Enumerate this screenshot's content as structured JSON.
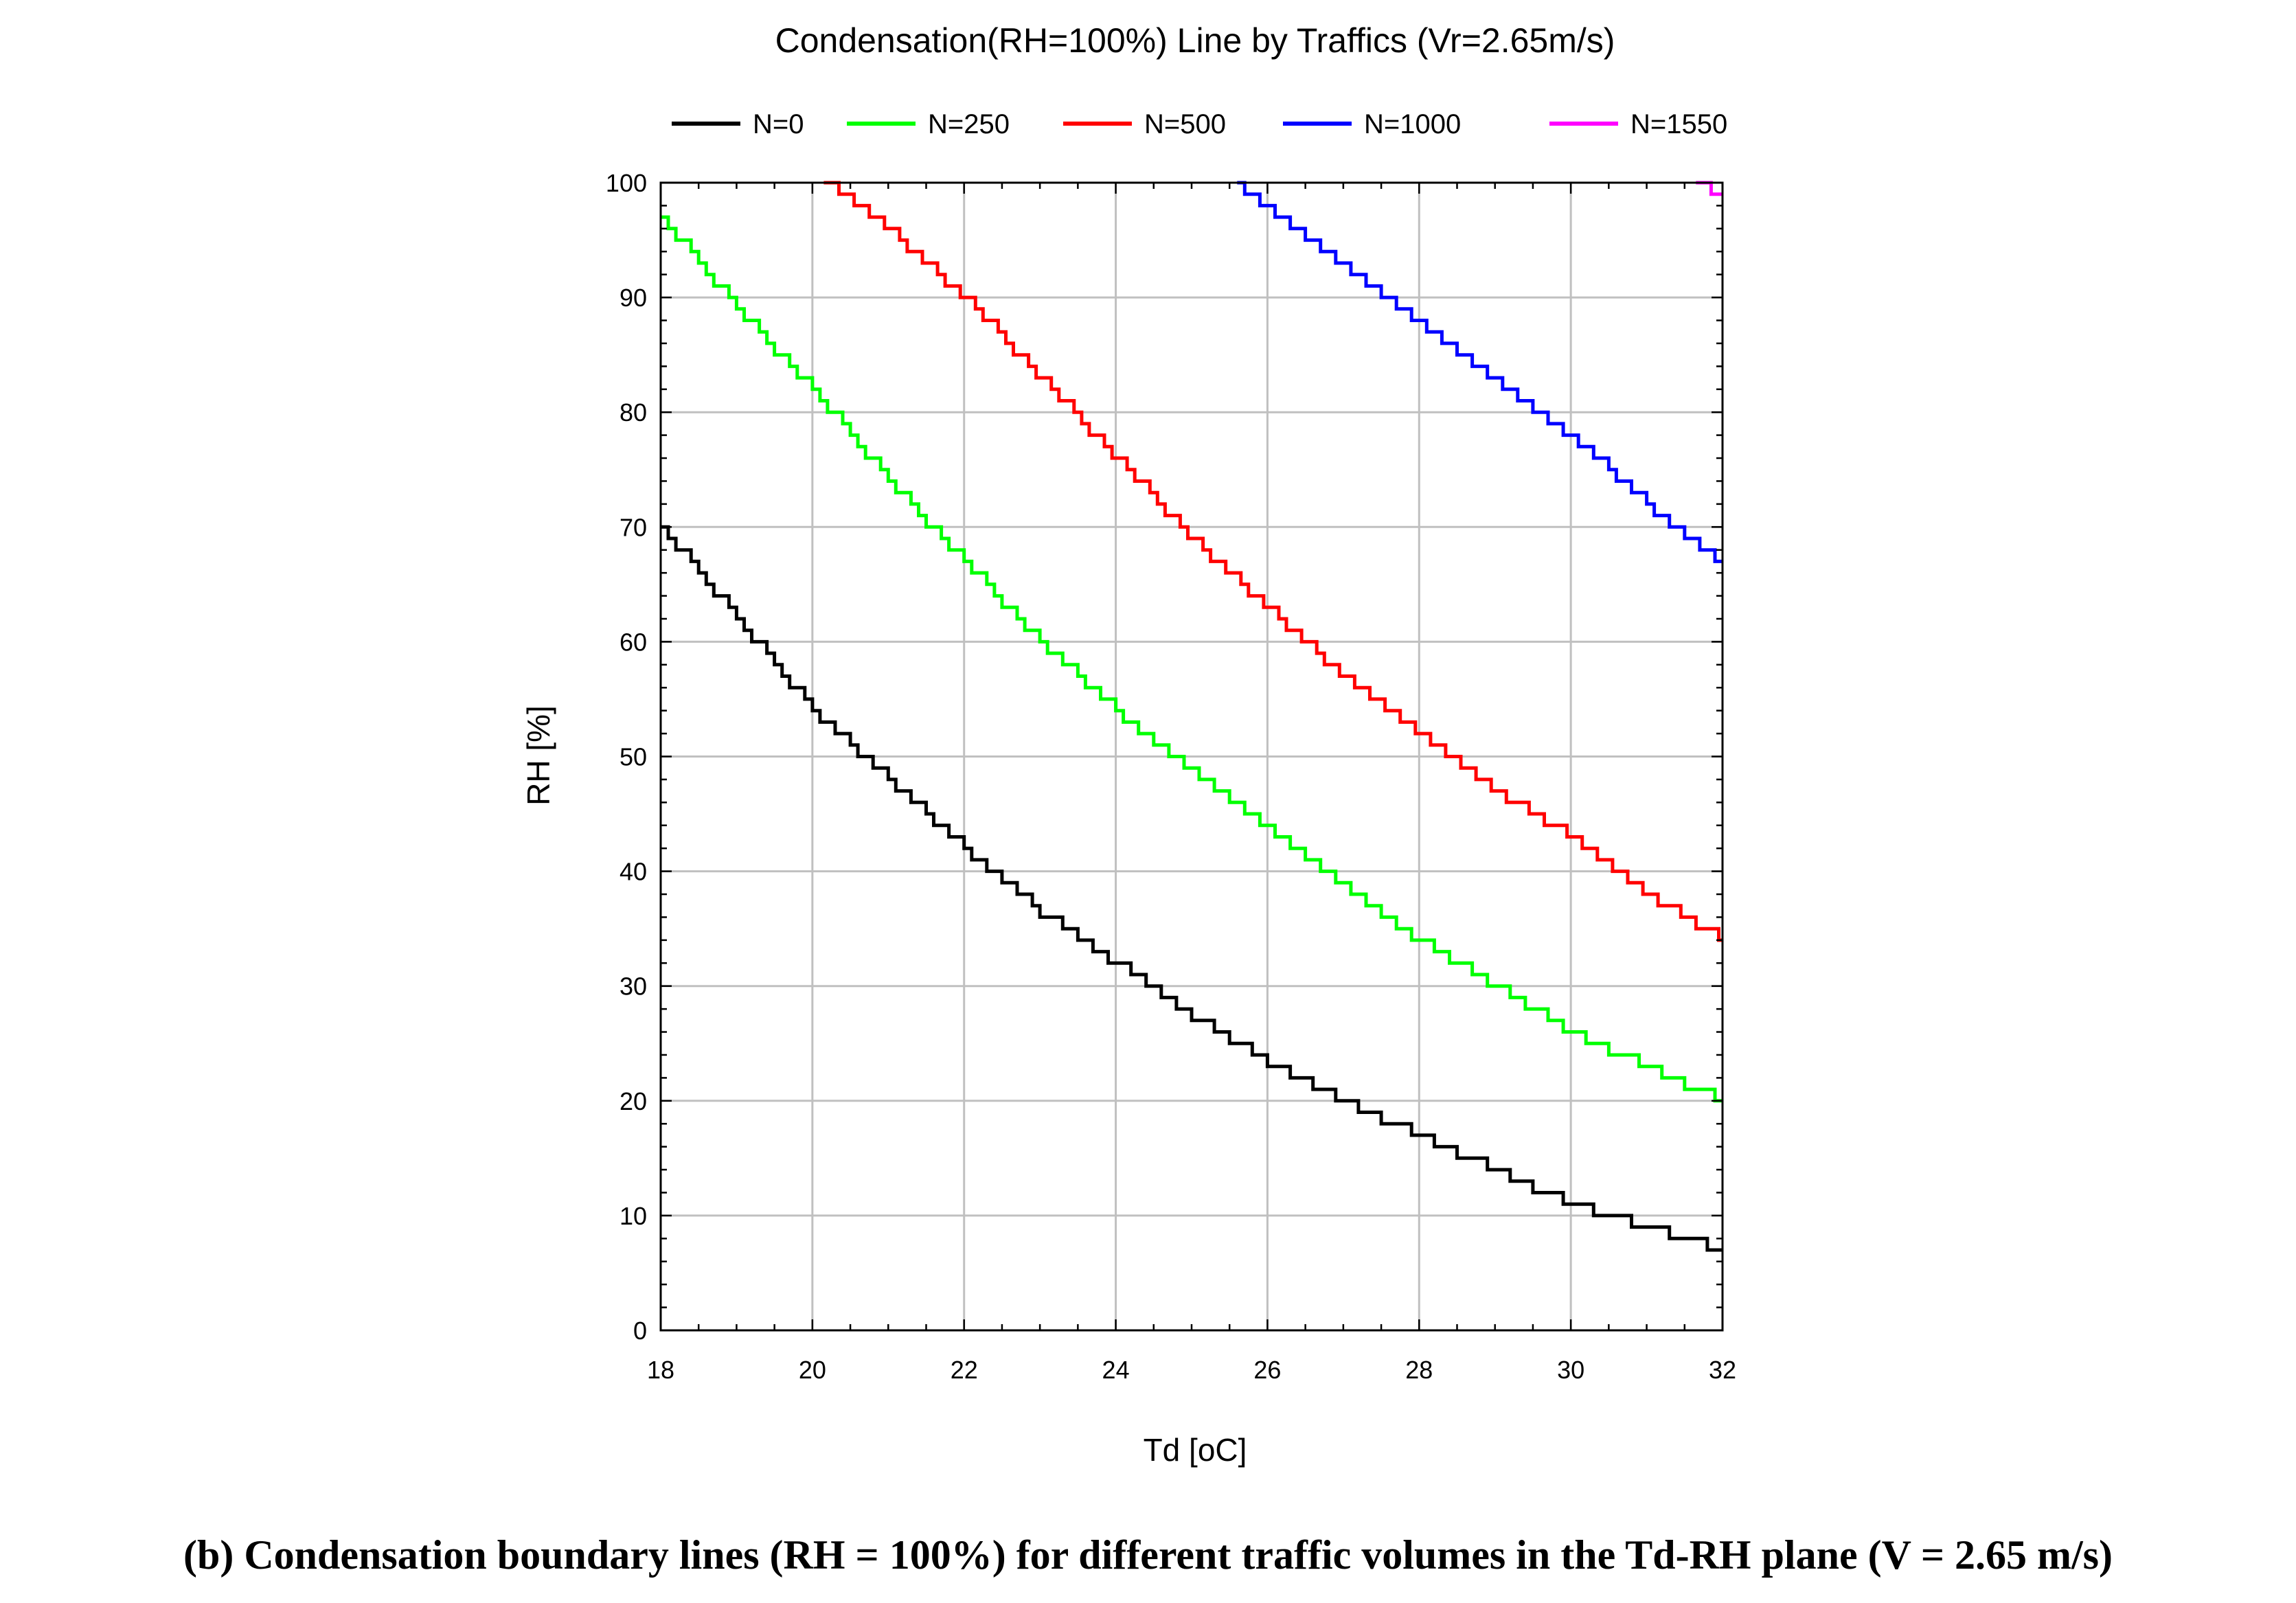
{
  "chart_data": {
    "type": "line",
    "title": "Condensation(RH=100%) Line by Traffics (Vr=2.65m/s)",
    "xlabel": "Td [oC]",
    "ylabel": "RH [%]",
    "xlim": [
      18,
      32
    ],
    "ylim": [
      0,
      100
    ],
    "x_ticks": [
      "18",
      "20",
      "22",
      "24",
      "26",
      "28",
      "30",
      "32"
    ],
    "y_ticks": [
      "0",
      "10",
      "20",
      "30",
      "40",
      "50",
      "60",
      "70",
      "80",
      "90",
      "100"
    ],
    "grid": true,
    "legend_position": "top",
    "step_style": true,
    "series": [
      {
        "name": "N=0",
        "color": "#000000",
        "points": [
          [
            18,
            70
          ],
          [
            19,
            62
          ],
          [
            20,
            54
          ],
          [
            21,
            48
          ],
          [
            22,
            42
          ],
          [
            23,
            36.5
          ],
          [
            24,
            32
          ],
          [
            25,
            27.5
          ],
          [
            26,
            23.5
          ],
          [
            27,
            20
          ],
          [
            28,
            17
          ],
          [
            29,
            14
          ],
          [
            30,
            11
          ],
          [
            31,
            9
          ],
          [
            32,
            7
          ]
        ]
      },
      {
        "name": "N=250",
        "color": "#00ff00",
        "points": [
          [
            18,
            97
          ],
          [
            19,
            89
          ],
          [
            20,
            82
          ],
          [
            21,
            74
          ],
          [
            22,
            67
          ],
          [
            23,
            60
          ],
          [
            24,
            54
          ],
          [
            25,
            49
          ],
          [
            26,
            44
          ],
          [
            27,
            39
          ],
          [
            28,
            34
          ],
          [
            29,
            30
          ],
          [
            30,
            26
          ],
          [
            31,
            23
          ],
          [
            32,
            20
          ]
        ]
      },
      {
        "name": "N=500",
        "color": "#ff0000",
        "points": [
          [
            20.15,
            100
          ],
          [
            21,
            96
          ],
          [
            22,
            90
          ],
          [
            23,
            83
          ],
          [
            24,
            76
          ],
          [
            25,
            69
          ],
          [
            26,
            63
          ],
          [
            27,
            57
          ],
          [
            28,
            52
          ],
          [
            29,
            47
          ],
          [
            30,
            43
          ],
          [
            31,
            38
          ],
          [
            32,
            34
          ]
        ]
      },
      {
        "name": "N=1000",
        "color": "#0000ff",
        "points": [
          [
            25.6,
            100
          ],
          [
            26,
            98
          ],
          [
            27,
            93
          ],
          [
            28,
            88
          ],
          [
            29,
            83
          ],
          [
            30,
            78
          ],
          [
            31,
            72
          ],
          [
            32,
            67
          ]
        ]
      },
      {
        "name": "N=1550",
        "color": "#ff00ff",
        "points": [
          [
            31.65,
            100
          ],
          [
            32,
            99
          ]
        ]
      }
    ]
  },
  "caption": "(b) Condensation boundary lines (RH = 100%) for different traffic volumes in the Td-RH plane (V = 2.65 m/s)"
}
